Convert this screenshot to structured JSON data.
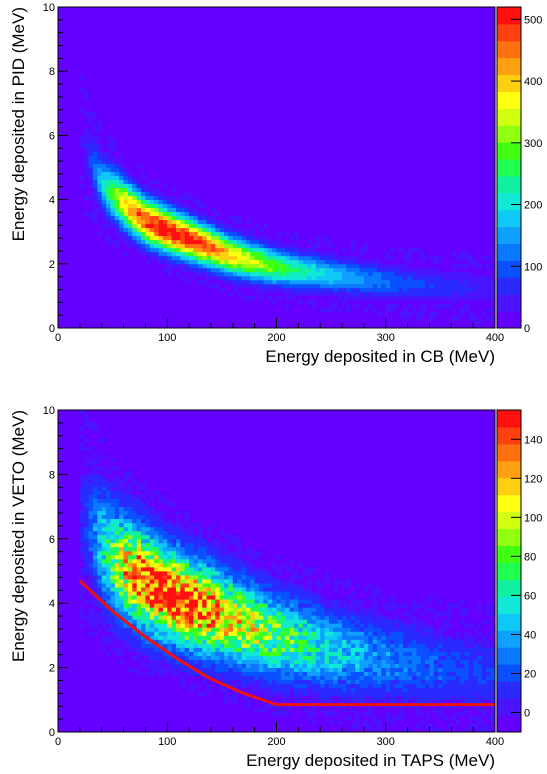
{
  "chart_data": [
    {
      "type": "heatmap",
      "xlabel": "Energy deposited in CB (MeV)",
      "ylabel": "Energy deposited in PID (MeV)",
      "xlim": [
        0,
        400
      ],
      "ylim": [
        0,
        10
      ],
      "x_ticks": [
        "0",
        "100",
        "200",
        "300",
        "400"
      ],
      "y_ticks": [
        "0",
        "2",
        "4",
        "6",
        "8",
        "10"
      ],
      "colorbar": {
        "min": 0,
        "max": 520,
        "ticks": [
          "0",
          "100",
          "200",
          "300",
          "400",
          "500"
        ]
      },
      "band": {
        "x_start": 20,
        "x_end": 400,
        "peak_x": 100,
        "peak_y": 3.0,
        "peak_value": 520,
        "ridge": [
          [
            20,
            6.0
          ],
          [
            40,
            4.5
          ],
          [
            60,
            3.9
          ],
          [
            80,
            3.35
          ],
          [
            100,
            3.05
          ],
          [
            130,
            2.65
          ],
          [
            160,
            2.25
          ],
          [
            200,
            1.9
          ],
          [
            250,
            1.65
          ],
          [
            300,
            1.45
          ],
          [
            350,
            1.3
          ],
          [
            400,
            1.2
          ]
        ],
        "spread": 0.45,
        "noise": 0.08
      }
    },
    {
      "type": "heatmap",
      "xlabel": "Energy deposited in TAPS (MeV)",
      "ylabel": "Energy deposited in VETO (MeV)",
      "xlim": [
        0,
        400
      ],
      "ylim": [
        0,
        10
      ],
      "x_ticks": [
        "0",
        "100",
        "200",
        "300",
        "400"
      ],
      "y_ticks": [
        "0",
        "2",
        "4",
        "6",
        "8",
        "10"
      ],
      "colorbar": {
        "min": -10,
        "max": 155,
        "ticks": [
          "0",
          "20",
          "40",
          "60",
          "80",
          "100",
          "120",
          "140"
        ]
      },
      "band": {
        "x_start": 20,
        "x_end": 400,
        "peak_x": 100,
        "peak_y": 4.3,
        "peak_value": 150,
        "ridge": [
          [
            20,
            6.8
          ],
          [
            50,
            5.4
          ],
          [
            80,
            4.7
          ],
          [
            100,
            4.3
          ],
          [
            130,
            3.9
          ],
          [
            160,
            3.5
          ],
          [
            200,
            3.0
          ],
          [
            250,
            2.55
          ],
          [
            300,
            2.25
          ],
          [
            350,
            2.0
          ],
          [
            400,
            1.8
          ]
        ],
        "spread": 0.9,
        "noise": 0.35
      },
      "cut_line": {
        "color": "#ee1111",
        "points": [
          [
            20,
            4.7
          ],
          [
            50,
            3.75
          ],
          [
            80,
            2.95
          ],
          [
            110,
            2.25
          ],
          [
            140,
            1.65
          ],
          [
            170,
            1.2
          ],
          [
            200,
            0.85
          ],
          [
            250,
            0.85
          ],
          [
            300,
            0.85
          ],
          [
            350,
            0.85
          ],
          [
            400,
            0.85
          ]
        ]
      }
    }
  ],
  "colors": {
    "background": "#6400ff"
  }
}
